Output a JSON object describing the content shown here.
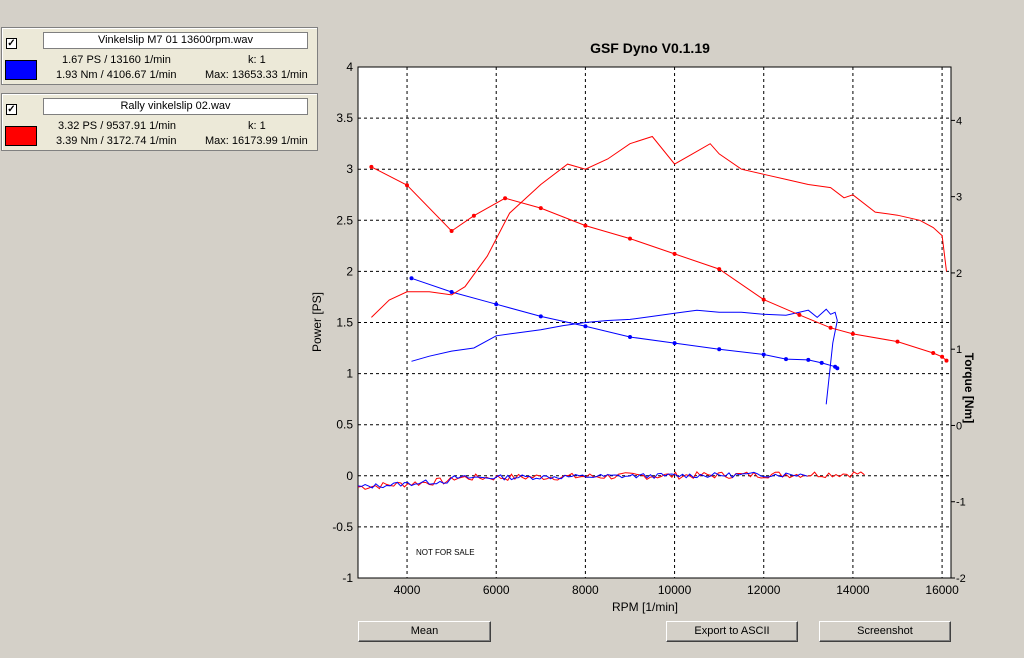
{
  "files": [
    {
      "checked": "✓",
      "name": "Vinkelslip M7 01 13600rpm.wav",
      "color": "#0000ff",
      "power_line": "1.67 PS / 13160 1/min",
      "torque_line": "1.93 Nm / 4106.67 1/min",
      "k_label": "k: 1",
      "max_line": "Max: 13653.33 1/min"
    },
    {
      "checked": "✓",
      "name": "Rally vinkelslip 02.wav",
      "color": "#ff0000",
      "power_line": "3.32 PS / 9537.91 1/min",
      "torque_line": "3.39 Nm / 3172.74 1/min",
      "k_label": "k: 1",
      "max_line": "Max: 16173.99 1/min"
    }
  ],
  "chart_title": "GSF Dyno V0.1.19",
  "watermark": "NOT FOR SALE",
  "buttons": {
    "mean": "Mean",
    "export": "Export to ASCII",
    "screenshot": "Screenshot"
  },
  "chart_data": {
    "type": "line",
    "title": "GSF Dyno V0.1.19",
    "xlabel": "RPM [1/min]",
    "ylabel": "Power [PS]",
    "y2label": "Torque [Nm]",
    "xlim": [
      2900,
      16200
    ],
    "ylim": [
      -1,
      4
    ],
    "y2lim": [
      -2,
      4.7
    ],
    "xticks": [
      "4000",
      "6000",
      "8000",
      "10000",
      "12000",
      "14000",
      "16000"
    ],
    "xtick_values": [
      4000,
      6000,
      8000,
      10000,
      12000,
      14000,
      16000
    ],
    "yticks": [
      "-1",
      "-0.5",
      "0",
      "0.5",
      "1",
      "1.5",
      "2",
      "2.5",
      "3",
      "3.5",
      "4"
    ],
    "ytick_values": [
      -1,
      -0.5,
      0,
      0.5,
      1,
      1.5,
      2,
      2.5,
      3,
      3.5,
      4
    ],
    "y2ticks": [
      "-2",
      "-1",
      "0",
      "1",
      "2",
      "3",
      "4"
    ],
    "y2tick_values": [
      -2,
      -1,
      0,
      1,
      2,
      3,
      4
    ],
    "grid": true,
    "series": [
      {
        "name": "Vinkelslip M7 01 13600rpm.wav",
        "color": "#0000ff",
        "kind": "power",
        "x": [
          4100,
          4500,
          5000,
          5500,
          6000,
          6500,
          7000,
          7500,
          8000,
          8500,
          9000,
          9500,
          10000,
          10500,
          11000,
          11500,
          12000,
          12500,
          12800,
          13000,
          13200,
          13400,
          13500,
          13600,
          13650,
          13550,
          13400
        ],
        "y": [
          1.12,
          1.17,
          1.22,
          1.25,
          1.37,
          1.4,
          1.43,
          1.47,
          1.5,
          1.52,
          1.53,
          1.56,
          1.59,
          1.62,
          1.6,
          1.6,
          1.58,
          1.57,
          1.6,
          1.62,
          1.55,
          1.63,
          1.58,
          1.6,
          1.52,
          1.3,
          0.7
        ]
      },
      {
        "name": "Vinkelslip M7 01 13600rpm.wav",
        "color": "#0000ff",
        "kind": "torque",
        "x": [
          4100,
          5000,
          6000,
          7000,
          8000,
          9000,
          10000,
          11000,
          12000,
          12500,
          13000,
          13300,
          13600,
          13650
        ],
        "y": [
          1.93,
          1.75,
          1.59,
          1.43,
          1.3,
          1.16,
          1.08,
          1.0,
          0.93,
          0.87,
          0.86,
          0.82,
          0.77,
          0.75
        ]
      },
      {
        "name": "Rally vinkelslip 02.wav",
        "color": "#ff0000",
        "kind": "power",
        "x": [
          3200,
          3600,
          4000,
          4500,
          5000,
          5300,
          5800,
          6300,
          7000,
          7600,
          8000,
          8500,
          9000,
          9500,
          10000,
          10400,
          10800,
          11000,
          11500,
          12000,
          12500,
          13000,
          13500,
          13800,
          14000,
          14500,
          15000,
          15500,
          15800,
          16000,
          16100
        ],
        "y": [
          1.55,
          1.72,
          1.8,
          1.8,
          1.77,
          1.85,
          2.15,
          2.57,
          2.85,
          3.05,
          3.0,
          3.1,
          3.25,
          3.32,
          3.05,
          3.15,
          3.25,
          3.15,
          3.0,
          2.95,
          2.9,
          2.85,
          2.82,
          2.72,
          2.75,
          2.58,
          2.55,
          2.5,
          2.43,
          2.35,
          2.0
        ]
      },
      {
        "name": "Rally vinkelslip 02.wav",
        "color": "#ff0000",
        "kind": "torque",
        "x": [
          3200,
          4000,
          5000,
          5500,
          6200,
          7000,
          8000,
          9000,
          10000,
          11000,
          12000,
          12800,
          13500,
          14000,
          15000,
          15800,
          16000,
          16100
        ],
        "y": [
          3.39,
          3.15,
          2.55,
          2.75,
          2.98,
          2.85,
          2.62,
          2.45,
          2.25,
          2.05,
          1.65,
          1.45,
          1.28,
          1.2,
          1.1,
          0.95,
          0.9,
          0.85
        ]
      }
    ]
  }
}
